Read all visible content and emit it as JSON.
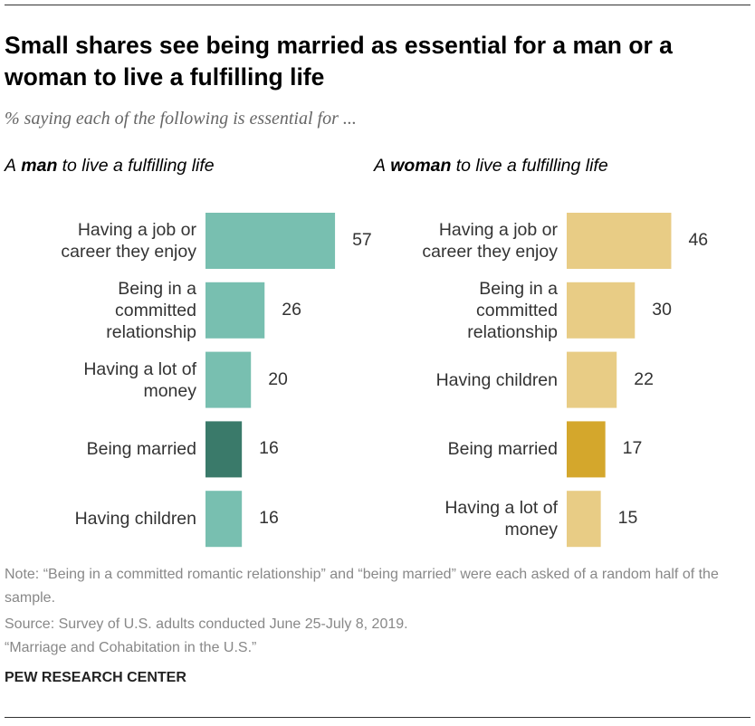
{
  "title": "Small shares see being married as essential for a man or a woman to live a fulfilling life",
  "subtitle": "% saying each of the following is essential for ...",
  "note": "Note: “Being in a committed romantic relationship” and “being married” were each asked of a random half of the sample.",
  "source": "Source: Survey of U.S. adults conducted June 25-July 8, 2019.",
  "report": "“Marriage and Cohabitation in the U.S.”",
  "brand": "PEW RESEARCH CENTER",
  "chart_data": [
    {
      "type": "bar",
      "orientation": "horizontal",
      "title_parts": [
        "A",
        "man",
        "to live a fulfilling life"
      ],
      "categories": [
        "Having a job or career they enjoy",
        "Being in a committed relationship",
        "Having a lot of money",
        "Being married",
        "Having children"
      ],
      "values": [
        57,
        26,
        20,
        16,
        16
      ],
      "colors": [
        "#78bfb0",
        "#78bfb0",
        "#78bfb0",
        "#3a7a6a",
        "#78bfb0"
      ]
    },
    {
      "type": "bar",
      "orientation": "horizontal",
      "title_parts": [
        "A",
        "woman",
        "to live a fulfilling life"
      ],
      "categories": [
        "Having a job or career they enjoy",
        "Being in a committed relationship",
        "Having children",
        "Being married",
        "Having a lot of money"
      ],
      "values": [
        46,
        30,
        22,
        17,
        15
      ],
      "colors": [
        "#e8cc85",
        "#e8cc85",
        "#e8cc85",
        "#d4a72c",
        "#e8cc85"
      ]
    }
  ]
}
